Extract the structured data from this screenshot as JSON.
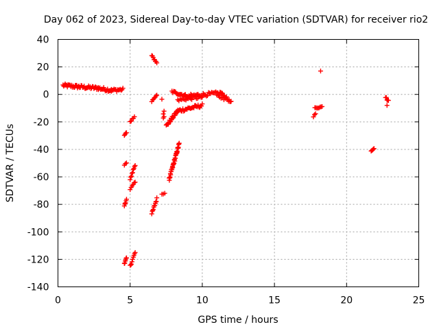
{
  "chart_data": {
    "type": "scatter",
    "title": "Day 062 of 2023, Sidereal Day-to-day VTEC variation (SDTVAR) for receiver rio2",
    "xlabel": "GPS time / hours",
    "ylabel": "SDTVAR / TECUs",
    "xlim": [
      0,
      25
    ],
    "ylim": [
      -140,
      40
    ],
    "xticks": [
      "0",
      "5",
      "10",
      "15",
      "20",
      "25"
    ],
    "yticks": [
      "40",
      "20",
      "0",
      "-20",
      "-40",
      "-60",
      "-80",
      "-100",
      "-120",
      "-140"
    ],
    "grid": true,
    "marker": "+",
    "color": "#ff0000",
    "segments": [
      {
        "x0": 0.35,
        "y0": 6.5,
        "x1": 1.5,
        "y1": 5.5,
        "n": 24,
        "spread": 2.5
      },
      {
        "x0": 1.5,
        "y0": 5.5,
        "x1": 2.8,
        "y1": 4.5,
        "n": 26,
        "spread": 2.5
      },
      {
        "x0": 2.8,
        "y0": 4.5,
        "x1": 3.7,
        "y1": 3.0,
        "n": 18,
        "spread": 2.5
      },
      {
        "x0": 3.7,
        "y0": 3.0,
        "x1": 4.5,
        "y1": 3.5,
        "n": 14,
        "spread": 2.2
      },
      {
        "x0": 4.6,
        "y0": -29.5,
        "x1": 4.75,
        "y1": -28,
        "n": 4,
        "spread": 1
      },
      {
        "x0": 4.6,
        "y0": -51,
        "x1": 4.75,
        "y1": -50,
        "n": 3,
        "spread": 1
      },
      {
        "x0": 4.6,
        "y0": -81,
        "x1": 4.75,
        "y1": -77,
        "n": 6,
        "spread": 1.5
      },
      {
        "x0": 4.6,
        "y0": -123,
        "x1": 4.75,
        "y1": -119,
        "n": 6,
        "spread": 1.5
      },
      {
        "x0": 5.0,
        "y0": -20,
        "x1": 5.3,
        "y1": -16,
        "n": 5,
        "spread": 1
      },
      {
        "x0": 5.0,
        "y0": -62,
        "x1": 5.35,
        "y1": -51,
        "n": 9,
        "spread": 1.5
      },
      {
        "x0": 5.0,
        "y0": -69,
        "x1": 5.35,
        "y1": -64,
        "n": 6,
        "spread": 1.5
      },
      {
        "x0": 5.0,
        "y0": -125,
        "x1": 5.35,
        "y1": -115,
        "n": 9,
        "spread": 2
      },
      {
        "x0": 6.5,
        "y0": 28,
        "x1": 6.85,
        "y1": 23,
        "n": 8,
        "spread": 1.5
      },
      {
        "x0": 6.5,
        "y0": -5,
        "x1": 6.85,
        "y1": 0,
        "n": 7,
        "spread": 1.5
      },
      {
        "x0": 6.5,
        "y0": -87,
        "x1": 6.85,
        "y1": -76,
        "n": 11,
        "spread": 2
      },
      {
        "x0": 7.2,
        "y0": -72.5,
        "x1": 7.4,
        "y1": -72,
        "n": 3,
        "spread": 0.5
      },
      {
        "x0": 7.2,
        "y0": -3.5,
        "x1": 7.3,
        "y1": -3.5,
        "n": 1,
        "spread": 0
      },
      {
        "x0": 7.3,
        "y0": -14,
        "x1": 7.35,
        "y1": -12,
        "n": 2,
        "spread": 0.5
      },
      {
        "x0": 7.3,
        "y0": -17,
        "x1": 7.35,
        "y1": -16,
        "n": 2,
        "spread": 0.5
      },
      {
        "x0": 7.5,
        "y0": -23,
        "x1": 8.3,
        "y1": -12,
        "n": 22,
        "spread": 2.5
      },
      {
        "x0": 8.3,
        "y0": -12,
        "x1": 10.0,
        "y1": -8,
        "n": 30,
        "spread": 2.5
      },
      {
        "x0": 7.7,
        "y0": -62,
        "x1": 8.4,
        "y1": -36,
        "n": 40,
        "spread": 2.5
      },
      {
        "x0": 7.9,
        "y0": 2,
        "x1": 9.2,
        "y1": -2,
        "n": 22,
        "spread": 2
      },
      {
        "x0": 8.3,
        "y0": -4,
        "x1": 10.0,
        "y1": -2,
        "n": 22,
        "spread": 2
      },
      {
        "x0": 9.2,
        "y0": -1,
        "x1": 11.3,
        "y1": 1,
        "n": 30,
        "spread": 2.5
      },
      {
        "x0": 11.3,
        "y0": 1,
        "x1": 12.0,
        "y1": -6,
        "n": 16,
        "spread": 2
      },
      {
        "x0": 11.0,
        "y0": -1,
        "x1": 11.5,
        "y1": -3,
        "n": 6,
        "spread": 2
      },
      {
        "x0": 17.7,
        "y0": -16,
        "x1": 17.85,
        "y1": -14,
        "n": 3,
        "spread": 0.8
      },
      {
        "x0": 17.8,
        "y0": -10,
        "x1": 18.3,
        "y1": -9,
        "n": 8,
        "spread": 1
      },
      {
        "x0": 18.2,
        "y0": 17,
        "x1": 18.25,
        "y1": 17,
        "n": 1,
        "spread": 0
      },
      {
        "x0": 21.7,
        "y0": -41,
        "x1": 21.9,
        "y1": -39,
        "n": 5,
        "spread": 1
      },
      {
        "x0": 22.7,
        "y0": -2,
        "x1": 22.9,
        "y1": -5,
        "n": 5,
        "spread": 1.5
      },
      {
        "x0": 22.8,
        "y0": -8,
        "x1": 22.85,
        "y1": -7,
        "n": 1,
        "spread": 0
      }
    ]
  }
}
